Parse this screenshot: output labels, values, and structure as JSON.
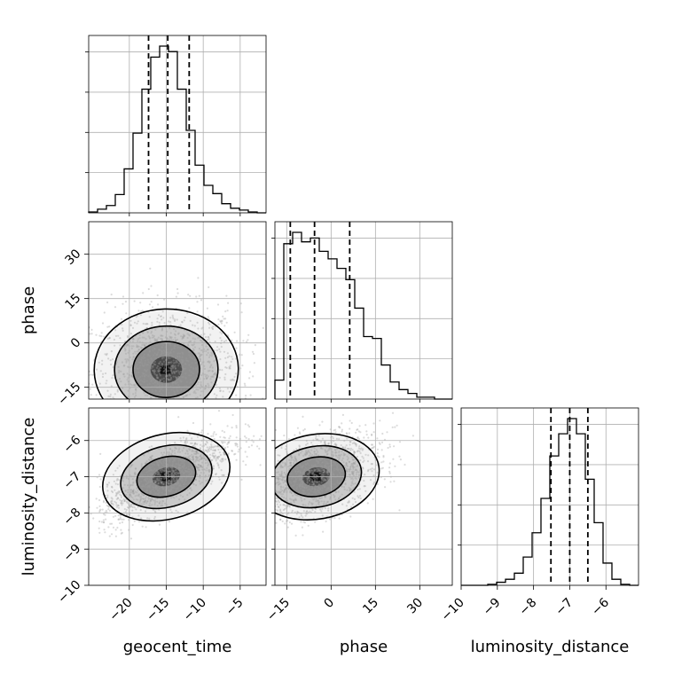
{
  "chart_data": {
    "type": "scatter",
    "parameters": [
      "geocent_time",
      "phase",
      "luminosity_distance"
    ],
    "axes": {
      "geocent_time": {
        "range": [
          -25.5,
          -1.5
        ],
        "ticks": [
          -20,
          -15,
          -10,
          -5
        ],
        "tick_labels": [
          "−20",
          "−15",
          "−10",
          "−5"
        ]
      },
      "phase": {
        "range": [
          -19,
          41
        ],
        "ticks": [
          -15,
          0,
          15,
          30
        ],
        "tick_labels": [
          "−15",
          "0",
          "15",
          "30"
        ]
      },
      "luminosity_distance": {
        "range": [
          -10,
          -5.1
        ],
        "ticks": [
          -10,
          -9,
          -8,
          -7,
          -6
        ],
        "tick_labels": [
          "−10",
          "−9",
          "−8",
          "−7",
          "−6"
        ]
      }
    },
    "labels": {
      "x": [
        "geocent_time",
        "phase",
        "luminosity_distance"
      ],
      "y": [
        "phase",
        "luminosity_distance"
      ]
    },
    "marginals": [
      {
        "parameter": "geocent_time",
        "quantiles": [
          -17.4,
          -14.8,
          -11.9
        ],
        "bin_edges": [
          -25.5,
          -24.3,
          -23.1,
          -21.9,
          -20.7,
          -19.5,
          -18.3,
          -17.1,
          -15.9,
          -14.7,
          -13.5,
          -12.3,
          -11.1,
          -9.9,
          -8.7,
          -7.5,
          -6.3,
          -5.1,
          -3.9,
          -2.7,
          -1.5
        ],
        "counts": [
          1,
          4,
          8,
          20,
          48,
          87,
          135,
          170,
          182,
          176,
          135,
          90,
          52,
          30,
          21,
          10,
          5,
          3,
          1,
          0
        ]
      },
      {
        "parameter": "phase",
        "quantiles": [
          -13.8,
          -5.6,
          6.3
        ],
        "bin_edges": [
          -19,
          -16,
          -13,
          -10,
          -7,
          -4,
          -1,
          2,
          5,
          8,
          11,
          14,
          17,
          20,
          23,
          26,
          29,
          32,
          35,
          38,
          41
        ],
        "counts": [
          10,
          82,
          88,
          83,
          85,
          78,
          74,
          69,
          63,
          48,
          33,
          32,
          18,
          9,
          5,
          3,
          1,
          1,
          0,
          0
        ]
      },
      {
        "parameter": "luminosity_distance",
        "quantiles": [
          -7.52,
          -7.0,
          -6.5
        ],
        "bin_edges": [
          -10.0,
          -9.755,
          -9.51,
          -9.265,
          -9.02,
          -8.775,
          -8.53,
          -8.285,
          -8.04,
          -7.795,
          -7.55,
          -7.305,
          -7.06,
          -6.815,
          -6.57,
          -6.325,
          -6.08,
          -5.835,
          -5.59,
          -5.345,
          -5.1
        ],
        "counts": [
          0,
          0,
          0,
          1,
          3,
          6,
          12,
          28,
          52,
          86,
          128,
          150,
          165,
          150,
          105,
          62,
          22,
          6,
          1,
          0
        ]
      }
    ],
    "pairs": [
      {
        "x": "geocent_time",
        "y": "phase",
        "center": [
          -15.0,
          -9.0
        ],
        "spread": [
          5.0,
          10.5
        ],
        "correlation": 0.05
      },
      {
        "x": "geocent_time",
        "y": "luminosity_distance",
        "center": [
          -15.0,
          -7.0
        ],
        "spread": [
          4.5,
          0.6
        ],
        "correlation": 0.72
      },
      {
        "x": "phase",
        "y": "luminosity_distance",
        "center": [
          -5.0,
          -7.0
        ],
        "spread": [
          11.0,
          0.6
        ],
        "correlation": 0.45
      }
    ],
    "grid": true
  }
}
